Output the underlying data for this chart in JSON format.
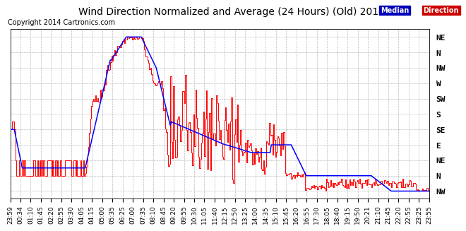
{
  "title": "Wind Direction Normalized and Average (24 Hours) (Old) 20140811",
  "copyright": "Copyright 2014 Cartronics.com",
  "background_color": "#ffffff",
  "plot_bg_color": "#ffffff",
  "grid_color": "#aaaaaa",
  "median_line_color": "#0000ff",
  "direction_line_color": "#ff0000",
  "title_fontsize": 10,
  "copyright_fontsize": 7,
  "tick_fontsize": 6.5,
  "ytick_fontsize": 8,
  "legend_median_bg": "#0000cc",
  "legend_direction_bg": "#cc0000",
  "ytick_labels_top_to_bottom": [
    "NE",
    "N",
    "NW",
    "W",
    "SW",
    "S",
    "SE",
    "E",
    "NE",
    "N",
    "NW"
  ],
  "xtick_labels": [
    "23:59",
    "00:34",
    "01:10",
    "01:45",
    "02:20",
    "02:55",
    "03:30",
    "04:05",
    "04:15",
    "05:00",
    "05:35",
    "06:25",
    "07:00",
    "07:35",
    "08:10",
    "08:45",
    "09:20",
    "09:55",
    "10:30",
    "11:05",
    "11:40",
    "12:15",
    "12:50",
    "13:25",
    "14:00",
    "14:35",
    "15:10",
    "15:45",
    "16:20",
    "16:55",
    "17:30",
    "18:05",
    "18:40",
    "19:15",
    "19:50",
    "20:21",
    "21:10",
    "21:45",
    "22:20",
    "22:55",
    "23:25",
    "23:55"
  ]
}
